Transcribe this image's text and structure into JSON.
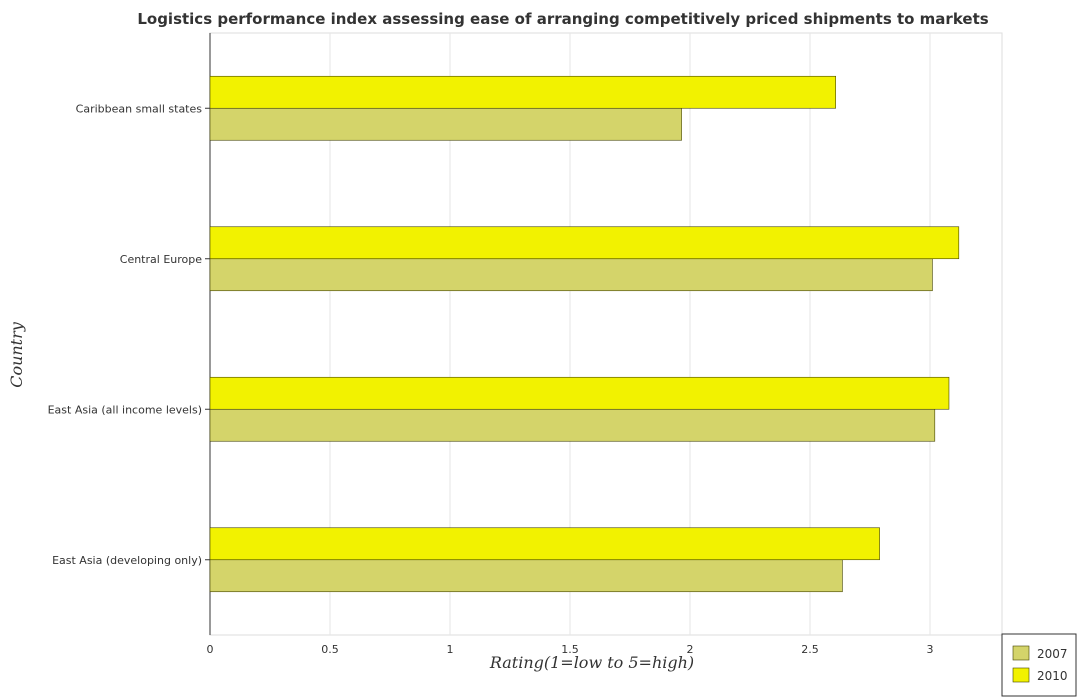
{
  "chart_data": {
    "type": "bar",
    "orientation": "horizontal",
    "title": "Logistics performance index assessing ease of arranging competitively priced shipments to markets",
    "xlabel": "Rating(1=low to 5=high)",
    "ylabel": "Country",
    "categories": [
      "Caribbean small states",
      "Central Europe",
      "East Asia (all income levels)",
      "East Asia (developing only)"
    ],
    "series": [
      {
        "name": "2007",
        "color": "#d4d46a",
        "values": [
          1.965,
          3.01,
          3.02,
          2.635
        ]
      },
      {
        "name": "2010",
        "color": "#f2f200",
        "values": [
          2.607,
          3.12,
          3.079,
          2.79
        ]
      }
    ],
    "xlim": [
      0,
      3.3
    ],
    "xticks": [
      0,
      0.5,
      1,
      1.5,
      2,
      2.5,
      3
    ],
    "xtick_labels": [
      "0",
      "0.5",
      "1",
      "1.5",
      "2",
      "2.5",
      "3"
    ],
    "grid": true,
    "legend_position": "bottom-right"
  }
}
